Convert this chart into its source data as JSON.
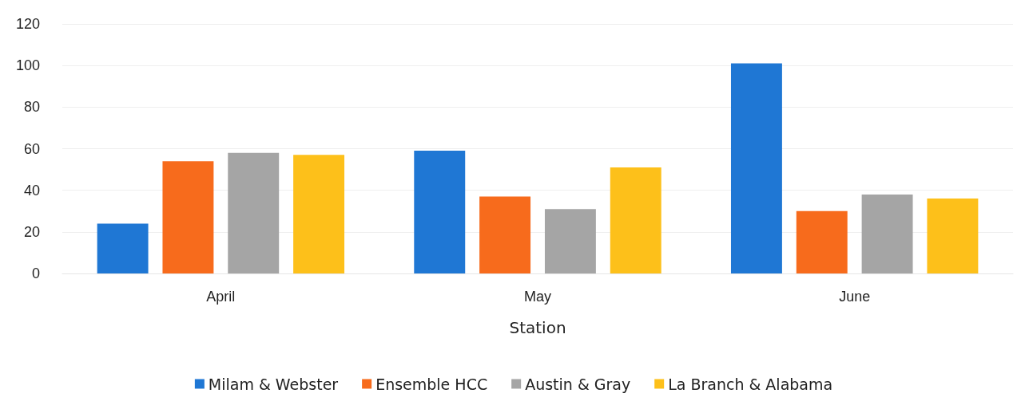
{
  "chart_data": {
    "type": "bar",
    "xlabel": "Station",
    "categories": [
      "April",
      "May",
      "June"
    ],
    "series": [
      {
        "name": "Milam & Webster",
        "color": "#1f77d4",
        "values": [
          24,
          59,
          101
        ]
      },
      {
        "name": "Ensemble HCC",
        "color": "#f76b1c",
        "values": [
          54,
          37,
          30
        ]
      },
      {
        "name": "Austin & Gray",
        "color": "#a5a5a5",
        "values": [
          58,
          31,
          38
        ]
      },
      {
        "name": "La Branch & Alabama",
        "color": "#fdc01a",
        "values": [
          57,
          51,
          36
        ]
      }
    ],
    "ylim": [
      0,
      120
    ],
    "yticks": [
      0,
      20,
      40,
      60,
      80,
      100,
      120
    ],
    "grid": "y",
    "legend": "bottom"
  }
}
